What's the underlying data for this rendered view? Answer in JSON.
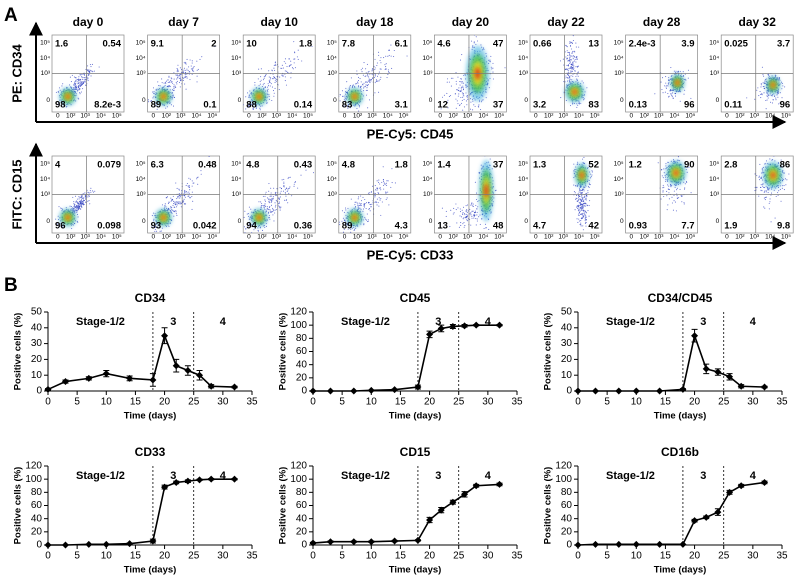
{
  "panel_labels": [
    "A",
    "B"
  ],
  "panel_a": {
    "flow_x_ticks": [
      "0",
      "10²",
      "10³",
      "10⁴",
      "10⁵"
    ],
    "flow_y_ticks": [
      "0",
      "10³",
      "10⁴",
      "10⁵"
    ],
    "rows": [
      {
        "y_label": "PE: CD34",
        "x_label": "PE-Cy5: CD45",
        "plots": [
          {
            "title": "day 0",
            "quadrants": {
              "ul": "1.6",
              "ur": "0.54",
              "ll": "98",
              "lr": "8.2e-3"
            }
          },
          {
            "title": "day 7",
            "quadrants": {
              "ul": "9.1",
              "ur": "2",
              "ll": "89",
              "lr": "0.1"
            }
          },
          {
            "title": "day 10",
            "quadrants": {
              "ul": "10",
              "ur": "1.8",
              "ll": "88",
              "lr": "0.14"
            }
          },
          {
            "title": "day 18",
            "quadrants": {
              "ul": "7.8",
              "ur": "6.1",
              "ll": "83",
              "lr": "3.1"
            }
          },
          {
            "title": "day 20",
            "quadrants": {
              "ul": "4.6",
              "ur": "47",
              "ll": "12",
              "lr": "37"
            }
          },
          {
            "title": "day 22",
            "quadrants": {
              "ul": "0.66",
              "ur": "13",
              "ll": "3.2",
              "lr": "83"
            }
          },
          {
            "title": "day 28",
            "quadrants": {
              "ul": "2.4e-3",
              "ur": "3.9",
              "ll": "0.13",
              "lr": "96"
            }
          },
          {
            "title": "day 32",
            "quadrants": {
              "ul": "0.025",
              "ur": "3.7",
              "ll": "0.11",
              "lr": "96"
            }
          }
        ]
      },
      {
        "y_label": "FITC: CD15",
        "x_label": "PE-Cy5: CD33",
        "plots": [
          {
            "quadrants": {
              "ul": "4",
              "ur": "0.079",
              "ll": "96",
              "lr": "0.098"
            }
          },
          {
            "quadrants": {
              "ul": "6.3",
              "ur": "0.48",
              "ll": "93",
              "lr": "0.042"
            }
          },
          {
            "quadrants": {
              "ul": "4.8",
              "ur": "0.43",
              "ll": "94",
              "lr": "0.36"
            }
          },
          {
            "quadrants": {
              "ul": "4.8",
              "ur": "1.8",
              "ll": "89",
              "lr": "4.3"
            }
          },
          {
            "quadrants": {
              "ul": "1.4",
              "ur": "37",
              "ll": "13",
              "lr": "48"
            }
          },
          {
            "quadrants": {
              "ul": "1.3",
              "ur": "52",
              "ll": "4.7",
              "lr": "42"
            }
          },
          {
            "quadrants": {
              "ul": "1.2",
              "ur": "90",
              "ll": "0.93",
              "lr": "7.7"
            }
          },
          {
            "quadrants": {
              "ul": "2.8",
              "ur": "86",
              "ll": "1.9",
              "lr": "9.8"
            }
          }
        ]
      }
    ]
  },
  "chart_data": [
    {
      "type": "line",
      "title": "CD34",
      "x_label": "Time (days)",
      "y_label": "Positive cells (%)",
      "color": "#000000",
      "x": [
        0,
        3,
        7,
        10,
        14,
        18,
        20,
        22,
        24,
        26,
        28,
        32
      ],
      "values": [
        1,
        6,
        8,
        11,
        8,
        7,
        35,
        16,
        13,
        10,
        3,
        2.5
      ],
      "errors": [
        0.5,
        1,
        1,
        2,
        1.5,
        4,
        5,
        4,
        3,
        3,
        1,
        0.5
      ],
      "xlim": [
        0,
        35
      ],
      "xticks": [
        0,
        5,
        10,
        15,
        20,
        25,
        30,
        35
      ],
      "ylim": [
        0,
        50
      ],
      "yticks": [
        0,
        10,
        20,
        30,
        40,
        50
      ],
      "stage_labels": [
        "Stage-1/2",
        "3",
        "4"
      ],
      "stage_boundaries": [
        18,
        25
      ]
    },
    {
      "type": "line",
      "title": "CD45",
      "x_label": "Time (days)",
      "y_label": "Positive cells (%)",
      "color": "#000000",
      "x": [
        0,
        3,
        7,
        10,
        14,
        18,
        20,
        22,
        24,
        26,
        28,
        32
      ],
      "values": [
        0,
        0,
        0,
        1,
        2,
        6,
        86,
        95,
        98,
        99,
        100,
        100
      ],
      "errors": [
        0,
        0,
        0,
        0.5,
        1,
        3,
        5,
        5,
        3,
        2,
        1,
        1
      ],
      "xlim": [
        0,
        35
      ],
      "xticks": [
        0,
        5,
        10,
        15,
        20,
        25,
        30,
        35
      ],
      "ylim": [
        0,
        120
      ],
      "yticks": [
        0,
        20,
        40,
        60,
        80,
        100,
        120
      ],
      "stage_labels": [
        "Stage-1/2",
        "3",
        "4"
      ],
      "stage_boundaries": [
        18,
        25
      ]
    },
    {
      "type": "line",
      "title": "CD34/CD45",
      "x_label": "Time (days)",
      "y_label": "Positive cells (%)",
      "color": "#000000",
      "x": [
        0,
        3,
        7,
        10,
        14,
        18,
        20,
        22,
        24,
        26,
        28,
        32
      ],
      "values": [
        0,
        0,
        0,
        0,
        0,
        1,
        35,
        14,
        12,
        9,
        3,
        2.5
      ],
      "errors": [
        0,
        0,
        0,
        0,
        0,
        0.5,
        4,
        3,
        2,
        2,
        1,
        0.5
      ],
      "xlim": [
        0,
        35
      ],
      "xticks": [
        0,
        5,
        10,
        15,
        20,
        25,
        30,
        35
      ],
      "ylim": [
        0,
        50
      ],
      "yticks": [
        0,
        10,
        20,
        30,
        40,
        50
      ],
      "stage_labels": [
        "Stage-1/2",
        "3",
        "4"
      ],
      "stage_boundaries": [
        18,
        25
      ]
    },
    {
      "type": "line",
      "title": "CD33",
      "x_label": "Time (days)",
      "y_label": "Positive cells (%)",
      "color": "#000000",
      "x": [
        0,
        3,
        7,
        10,
        14,
        18,
        20,
        22,
        24,
        26,
        28,
        32
      ],
      "values": [
        0,
        0,
        1,
        1,
        2,
        6,
        88,
        95,
        97,
        99,
        100,
        100
      ],
      "errors": [
        0,
        0,
        0.5,
        0.5,
        1,
        3,
        3,
        2,
        2,
        1,
        1,
        1
      ],
      "xlim": [
        0,
        35
      ],
      "xticks": [
        0,
        5,
        10,
        15,
        20,
        25,
        30,
        35
      ],
      "ylim": [
        0,
        120
      ],
      "yticks": [
        0,
        20,
        40,
        60,
        80,
        100,
        120
      ],
      "stage_labels": [
        "Stage-1/2",
        "3",
        "4"
      ],
      "stage_boundaries": [
        18,
        25
      ]
    },
    {
      "type": "line",
      "title": "CD15",
      "x_label": "Time (days)",
      "y_label": "Positive cells (%)",
      "color": "#000000",
      "x": [
        0,
        3,
        7,
        10,
        14,
        18,
        20,
        22,
        24,
        26,
        28,
        32
      ],
      "values": [
        3,
        5,
        5,
        5,
        6,
        7,
        38,
        53,
        65,
        77,
        90,
        92
      ],
      "errors": [
        1,
        1,
        1,
        1,
        1,
        1,
        4,
        4,
        3,
        4,
        2,
        2
      ],
      "xlim": [
        0,
        35
      ],
      "xticks": [
        0,
        5,
        10,
        15,
        20,
        25,
        30,
        35
      ],
      "ylim": [
        0,
        120
      ],
      "yticks": [
        0,
        20,
        40,
        60,
        80,
        100,
        120
      ],
      "stage_labels": [
        "Stage-1/2",
        "3",
        "4"
      ],
      "stage_boundaries": [
        18,
        25
      ]
    },
    {
      "type": "line",
      "title": "CD16b",
      "x_label": "Time (days)",
      "y_label": "Positive cells (%)",
      "color": "#000000",
      "x": [
        0,
        3,
        7,
        10,
        14,
        18,
        20,
        22,
        24,
        26,
        28,
        32
      ],
      "values": [
        0,
        1,
        1,
        1,
        1,
        1,
        37,
        42,
        50,
        80,
        90,
        95
      ],
      "errors": [
        0,
        0,
        0,
        0,
        0,
        0,
        2,
        2,
        5,
        3,
        2,
        2
      ],
      "xlim": [
        0,
        35
      ],
      "xticks": [
        0,
        5,
        10,
        15,
        20,
        25,
        30,
        35
      ],
      "ylim": [
        0,
        120
      ],
      "yticks": [
        0,
        20,
        40,
        60,
        80,
        100,
        120
      ],
      "stage_labels": [
        "Stage-1/2",
        "3",
        "4"
      ],
      "stage_boundaries": [
        18,
        25
      ]
    }
  ]
}
